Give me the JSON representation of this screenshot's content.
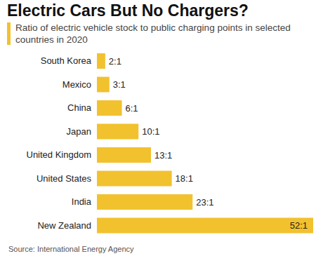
{
  "chart_data": {
    "type": "bar",
    "title": "Electric Cars But No Chargers?",
    "subtitle": "Ratio of electric vehicle stock to public charging points in selected countries in 2020",
    "source": "Source: International Energy Agency",
    "categories": [
      "South Korea",
      "Mexico",
      "China",
      "Japan",
      "United Kingdom",
      "United States",
      "India",
      "New Zealand"
    ],
    "values": [
      2,
      3,
      6,
      10,
      13,
      18,
      23,
      52
    ],
    "value_labels": [
      "2:1",
      "3:1",
      "6:1",
      "10:1",
      "13:1",
      "18:1",
      "23:1",
      "52:1"
    ],
    "color": "#f2c12e",
    "orientation": "horizontal",
    "data_labels": true,
    "tick_labels": "y",
    "xlim": [
      0,
      52
    ],
    "grid": false
  }
}
